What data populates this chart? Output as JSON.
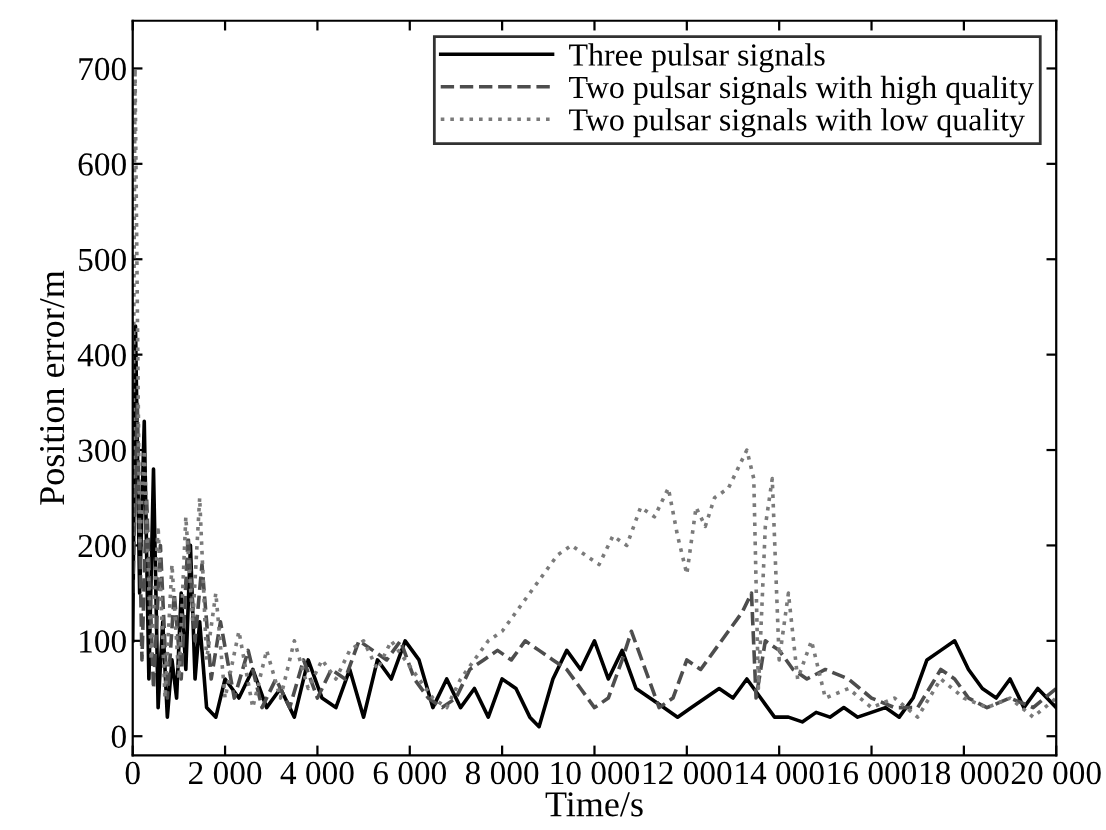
{
  "chart_data": {
    "type": "line",
    "xlabel": "Time/s",
    "ylabel": "Position error/m",
    "xlim": [
      0,
      20000
    ],
    "ylim": [
      -20,
      750
    ],
    "xticks": [
      0,
      {
        "value": 2000,
        "label": "2 000"
      },
      {
        "value": 4000,
        "label": "4 000"
      },
      {
        "value": 6000,
        "label": "6 000"
      },
      {
        "value": 8000,
        "label": "8 000"
      },
      {
        "value": 10000,
        "label": "10 000"
      },
      {
        "value": 12000,
        "label": "12 000"
      },
      {
        "value": 14000,
        "label": "14 000"
      },
      {
        "value": 16000,
        "label": "16 000"
      },
      {
        "value": 18000,
        "label": "18 000"
      },
      {
        "value": 20000,
        "label": "20 000"
      }
    ],
    "yticks": [
      0,
      100,
      200,
      300,
      400,
      500,
      600,
      700
    ],
    "grid": false,
    "legend": "top right",
    "marker": "none",
    "series": [
      {
        "name": "Three pulsar signals",
        "color": "#000000",
        "line_style": "solid",
        "x": [
          0,
          60,
          150,
          250,
          350,
          450,
          550,
          650,
          750,
          850,
          950,
          1050,
          1150,
          1250,
          1350,
          1450,
          1600,
          1800,
          2000,
          2300,
          2600,
          2900,
          3200,
          3500,
          3800,
          4100,
          4400,
          4700,
          5000,
          5300,
          5600,
          5900,
          6200,
          6500,
          6800,
          7100,
          7400,
          7700,
          8000,
          8300,
          8600,
          8800,
          9100,
          9400,
          9700,
          10000,
          10300,
          10600,
          10900,
          11200,
          11500,
          11800,
          12100,
          12400,
          12700,
          13000,
          13300,
          13600,
          13900,
          14200,
          14500,
          14800,
          15100,
          15400,
          15700,
          16000,
          16300,
          16600,
          16900,
          17200,
          17500,
          17800,
          18100,
          18400,
          18700,
          19000,
          19300,
          19600,
          20000
        ],
        "values": [
          100,
          430,
          150,
          330,
          60,
          280,
          30,
          120,
          20,
          80,
          40,
          150,
          70,
          200,
          60,
          120,
          30,
          20,
          60,
          40,
          70,
          30,
          50,
          20,
          80,
          40,
          30,
          70,
          20,
          80,
          60,
          100,
          80,
          30,
          60,
          30,
          50,
          20,
          60,
          50,
          20,
          10,
          60,
          90,
          70,
          100,
          60,
          90,
          50,
          40,
          30,
          20,
          30,
          40,
          50,
          40,
          60,
          40,
          20,
          20,
          15,
          25,
          20,
          30,
          20,
          25,
          30,
          20,
          40,
          80,
          90,
          100,
          70,
          50,
          40,
          60,
          30,
          50,
          30
        ]
      },
      {
        "name": "Two pulsar signals with high quality",
        "color": "#4d4d4d",
        "line_style": "dashed",
        "x": [
          0,
          100,
          200,
          300,
          450,
          600,
          750,
          900,
          1050,
          1200,
          1350,
          1500,
          1700,
          1900,
          2200,
          2500,
          2800,
          3100,
          3400,
          3700,
          4000,
          4300,
          4600,
          4900,
          5200,
          5500,
          5800,
          6100,
          6400,
          6700,
          7000,
          7300,
          7600,
          7900,
          8200,
          8500,
          8800,
          9100,
          9400,
          9700,
          10000,
          10300,
          10600,
          10800,
          11100,
          11400,
          11700,
          12000,
          12300,
          12600,
          12900,
          13200,
          13400,
          13500,
          13700,
          14000,
          14300,
          14600,
          15000,
          15500,
          16000,
          16500,
          17000,
          17500,
          17800,
          18100,
          18500,
          19000,
          19500,
          20000
        ],
        "values": [
          150,
          350,
          80,
          250,
          50,
          200,
          40,
          150,
          60,
          210,
          100,
          180,
          60,
          120,
          40,
          90,
          30,
          60,
          30,
          80,
          40,
          70,
          60,
          100,
          90,
          80,
          100,
          60,
          40,
          30,
          40,
          70,
          80,
          90,
          80,
          100,
          90,
          80,
          70,
          50,
          30,
          40,
          80,
          110,
          70,
          30,
          40,
          80,
          70,
          90,
          110,
          130,
          150,
          40,
          100,
          90,
          70,
          60,
          70,
          60,
          40,
          30,
          30,
          70,
          60,
          40,
          30,
          40,
          30,
          50
        ]
      },
      {
        "name": "Two pulsar signals with low quality",
        "color": "#7a7a7a",
        "line_style": "dotted",
        "x": [
          0,
          50,
          150,
          250,
          400,
          550,
          700,
          850,
          1000,
          1150,
          1300,
          1450,
          1600,
          1800,
          2000,
          2300,
          2600,
          2900,
          3200,
          3500,
          3800,
          4100,
          4400,
          4700,
          5000,
          5300,
          5600,
          5900,
          6200,
          6500,
          6800,
          7100,
          7400,
          7700,
          8000,
          8300,
          8600,
          8900,
          9200,
          9500,
          9800,
          10100,
          10400,
          10700,
          11000,
          11300,
          11600,
          11800,
          12000,
          12200,
          12400,
          12600,
          12900,
          13100,
          13300,
          13450,
          13550,
          13700,
          13850,
          14000,
          14200,
          14400,
          14700,
          15000,
          15500,
          16000,
          16500,
          17000,
          17500,
          18000,
          18500,
          19000,
          19500,
          20000
        ],
        "values": [
          200,
          700,
          200,
          300,
          80,
          220,
          40,
          180,
          60,
          230,
          120,
          250,
          80,
          150,
          40,
          110,
          30,
          90,
          40,
          100,
          50,
          80,
          60,
          90,
          100,
          70,
          100,
          80,
          60,
          40,
          30,
          60,
          80,
          100,
          110,
          130,
          150,
          170,
          190,
          200,
          190,
          180,
          210,
          200,
          240,
          230,
          260,
          210,
          170,
          240,
          220,
          250,
          260,
          280,
          300,
          270,
          50,
          220,
          270,
          80,
          150,
          60,
          100,
          40,
          50,
          30,
          40,
          20,
          60,
          40,
          30,
          40,
          20,
          40
        ]
      }
    ]
  }
}
